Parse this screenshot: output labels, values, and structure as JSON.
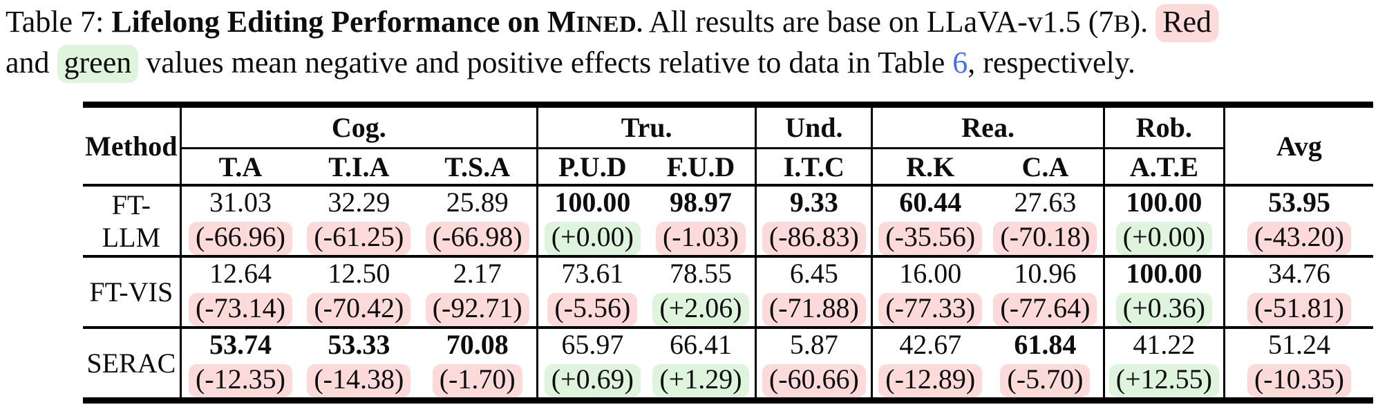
{
  "colors": {
    "highlight_red": "#fcdada",
    "highlight_green": "#def4dc",
    "link_blue": "#4371e6",
    "text": "#0d0d0d"
  },
  "caption": {
    "prefix": "Table 7: ",
    "title_bold": "Lifelong Editing Performance on ",
    "dataset_initial": "M",
    "dataset_smallcaps": "INED.",
    "body_1": " All results are base on LLaVA-v1.5 (7",
    "b_small": "B",
    "body_2": "). ",
    "red_word": "Red",
    "line2_pre": "and ",
    "green_word": "green",
    "line2_mid": " values mean negative and positive effects relative to data in Table ",
    "table_ref": "6",
    "line2_end": ", respectively."
  },
  "table": {
    "method_label": "Method",
    "avg_label": "Avg",
    "groups": [
      {
        "label": "Cog.",
        "span": 3
      },
      {
        "label": "Tru.",
        "span": 2
      },
      {
        "label": "Und.",
        "span": 1
      },
      {
        "label": "Rea.",
        "span": 2
      },
      {
        "label": "Rob.",
        "span": 1
      }
    ],
    "sub_headers": [
      "T.A",
      "T.I.A",
      "T.S.A",
      "P.U.D",
      "F.U.D",
      "I.T.C",
      "R.K",
      "C.A",
      "A.T.E"
    ],
    "rows": [
      {
        "method": "FT-LLM",
        "cells": [
          {
            "value": "31.03",
            "bold": false,
            "delta": "(-66.96)",
            "delta_type": "neg"
          },
          {
            "value": "32.29",
            "bold": false,
            "delta": "(-61.25)",
            "delta_type": "neg"
          },
          {
            "value": "25.89",
            "bold": false,
            "delta": "(-66.98)",
            "delta_type": "neg"
          },
          {
            "value": "100.00",
            "bold": true,
            "delta": "(+0.00)",
            "delta_type": "pos"
          },
          {
            "value": "98.97",
            "bold": true,
            "delta": "(-1.03)",
            "delta_type": "neg"
          },
          {
            "value": "9.33",
            "bold": true,
            "delta": "(-86.83)",
            "delta_type": "neg"
          },
          {
            "value": "60.44",
            "bold": true,
            "delta": "(-35.56)",
            "delta_type": "neg"
          },
          {
            "value": "27.63",
            "bold": false,
            "delta": "(-70.18)",
            "delta_type": "neg"
          },
          {
            "value": "100.00",
            "bold": true,
            "delta": "(+0.00)",
            "delta_type": "pos"
          },
          {
            "value": "53.95",
            "bold": true,
            "delta": "(-43.20)",
            "delta_type": "neg"
          }
        ]
      },
      {
        "method": "FT-VIS",
        "cells": [
          {
            "value": "12.64",
            "bold": false,
            "delta": "(-73.14)",
            "delta_type": "neg"
          },
          {
            "value": "12.50",
            "bold": false,
            "delta": "(-70.42)",
            "delta_type": "neg"
          },
          {
            "value": "2.17",
            "bold": false,
            "delta": "(-92.71)",
            "delta_type": "neg"
          },
          {
            "value": "73.61",
            "bold": false,
            "delta": "(-5.56)",
            "delta_type": "neg"
          },
          {
            "value": "78.55",
            "bold": false,
            "delta": "(+2.06)",
            "delta_type": "pos"
          },
          {
            "value": "6.45",
            "bold": false,
            "delta": "(-71.88)",
            "delta_type": "neg"
          },
          {
            "value": "16.00",
            "bold": false,
            "delta": "(-77.33)",
            "delta_type": "neg"
          },
          {
            "value": "10.96",
            "bold": false,
            "delta": "(-77.64)",
            "delta_type": "neg"
          },
          {
            "value": "100.00",
            "bold": true,
            "delta": "(+0.36)",
            "delta_type": "pos"
          },
          {
            "value": "34.76",
            "bold": false,
            "delta": "(-51.81)",
            "delta_type": "neg"
          }
        ]
      },
      {
        "method": "SERAC",
        "cells": [
          {
            "value": "53.74",
            "bold": true,
            "delta": "(-12.35)",
            "delta_type": "neg"
          },
          {
            "value": "53.33",
            "bold": true,
            "delta": "(-14.38)",
            "delta_type": "neg"
          },
          {
            "value": "70.08",
            "bold": true,
            "delta": "(-1.70)",
            "delta_type": "neg"
          },
          {
            "value": "65.97",
            "bold": false,
            "delta": "(+0.69)",
            "delta_type": "pos"
          },
          {
            "value": "66.41",
            "bold": false,
            "delta": "(+1.29)",
            "delta_type": "pos"
          },
          {
            "value": "5.87",
            "bold": false,
            "delta": "(-60.66)",
            "delta_type": "neg"
          },
          {
            "value": "42.67",
            "bold": false,
            "delta": "(-12.89)",
            "delta_type": "neg"
          },
          {
            "value": "61.84",
            "bold": true,
            "delta": "(-5.70)",
            "delta_type": "neg"
          },
          {
            "value": "41.22",
            "bold": false,
            "delta": "(+12.55)",
            "delta_type": "pos"
          },
          {
            "value": "51.24",
            "bold": false,
            "delta": "(-10.35)",
            "delta_type": "neg"
          }
        ]
      }
    ]
  }
}
